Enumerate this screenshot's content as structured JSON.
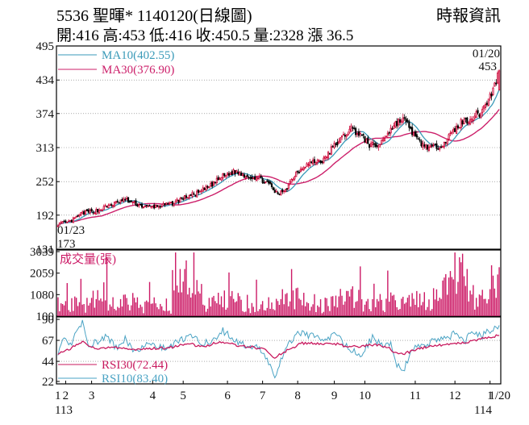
{
  "header": {
    "title_line": "5536 聖暉* 1140120(日線圖)",
    "quote_line": "開:416 高:453 低:416 收:450.5 量:2328 漲 36.5",
    "source": "時報資訊"
  },
  "colors": {
    "up": "#cc0033",
    "down": "#000000",
    "ma10": "#3a9ab8",
    "ma30": "#cc1f6a",
    "volume": "#cc1a66",
    "rsi10": "#4aa3c4",
    "rsi30": "#c8195e",
    "grid": "#777777"
  },
  "chart_data": [
    {
      "type": "candlestick",
      "yticks": [
        131,
        192,
        252,
        313,
        374,
        434,
        495
      ],
      "ylim": [
        131,
        495
      ],
      "legend": [
        {
          "label": "MA10(402.55)",
          "color": "#3a9ab8"
        },
        {
          "label": "MA30(376.90)",
          "color": "#cc1f6a"
        }
      ],
      "annotations": {
        "first_date": "01/23",
        "low_value": "173",
        "last_date": "01/20",
        "last_value": "453"
      },
      "period_start": "2024-01-23",
      "period_end": "2025-01-20",
      "close_keypoints": [
        [
          0,
          176
        ],
        [
          8,
          180
        ],
        [
          16,
          196
        ],
        [
          26,
          200
        ],
        [
          34,
          210
        ],
        [
          44,
          220
        ],
        [
          50,
          213
        ],
        [
          58,
          206
        ],
        [
          66,
          208
        ],
        [
          74,
          212
        ],
        [
          84,
          225
        ],
        [
          92,
          232
        ],
        [
          100,
          245
        ],
        [
          108,
          262
        ],
        [
          116,
          270
        ],
        [
          124,
          262
        ],
        [
          132,
          258
        ],
        [
          138,
          248
        ],
        [
          144,
          228
        ],
        [
          150,
          242
        ],
        [
          156,
          268
        ],
        [
          162,
          282
        ],
        [
          168,
          288
        ],
        [
          174,
          290
        ],
        [
          180,
          314
        ],
        [
          186,
          330
        ],
        [
          192,
          348
        ],
        [
          198,
          336
        ],
        [
          204,
          318
        ],
        [
          210,
          316
        ],
        [
          216,
          340
        ],
        [
          222,
          358
        ],
        [
          226,
          364
        ],
        [
          230,
          352
        ],
        [
          234,
          330
        ],
        [
          240,
          316
        ],
        [
          246,
          312
        ],
        [
          252,
          320
        ],
        [
          258,
          338
        ],
        [
          264,
          358
        ],
        [
          268,
          362
        ],
        [
          272,
          368
        ],
        [
          276,
          374
        ],
        [
          280,
          390
        ],
        [
          284,
          410
        ],
        [
          287,
          432
        ],
        [
          289,
          452
        ]
      ],
      "ma10_last": 402.55,
      "ma30_last": 376.9
    },
    {
      "type": "bar",
      "series_label": "成交量(張)",
      "yticks": [
        100,
        1080,
        2059,
        3039
      ],
      "ylim": [
        100,
        3039
      ],
      "volume_keypoints": [
        [
          0,
          800
        ],
        [
          10,
          700
        ],
        [
          20,
          600
        ],
        [
          30,
          1200
        ],
        [
          38,
          500
        ],
        [
          46,
          900
        ],
        [
          56,
          500
        ],
        [
          66,
          700
        ],
        [
          74,
          600
        ],
        [
          80,
          1700
        ],
        [
          84,
          1900
        ],
        [
          88,
          1500
        ],
        [
          98,
          600
        ],
        [
          108,
          900
        ],
        [
          116,
          800
        ],
        [
          124,
          700
        ],
        [
          132,
          600
        ],
        [
          142,
          700
        ],
        [
          150,
          1100
        ],
        [
          158,
          900
        ],
        [
          166,
          800
        ],
        [
          174,
          600
        ],
        [
          184,
          1000
        ],
        [
          192,
          1100
        ],
        [
          200,
          800
        ],
        [
          208,
          700
        ],
        [
          218,
          800
        ],
        [
          228,
          700
        ],
        [
          236,
          900
        ],
        [
          244,
          700
        ],
        [
          252,
          1500
        ],
        [
          258,
          2100
        ],
        [
          262,
          2400
        ],
        [
          266,
          1900
        ],
        [
          270,
          1200
        ],
        [
          276,
          1000
        ],
        [
          282,
          1300
        ],
        [
          289,
          2328
        ]
      ]
    },
    {
      "type": "line",
      "yticks": [
        22,
        44,
        67,
        90
      ],
      "ylim": [
        22,
        90
      ],
      "series": [
        {
          "name": "RSI30(72.44)",
          "last": 72.44
        },
        {
          "name": "RSI10(83.40)",
          "last": 83.4
        }
      ],
      "rsi10_keypoints": [
        [
          0,
          52
        ],
        [
          4,
          68
        ],
        [
          8,
          62
        ],
        [
          12,
          75
        ],
        [
          16,
          88
        ],
        [
          20,
          62
        ],
        [
          26,
          66
        ],
        [
          32,
          72
        ],
        [
          38,
          58
        ],
        [
          44,
          68
        ],
        [
          50,
          55
        ],
        [
          56,
          62
        ],
        [
          64,
          62
        ],
        [
          72,
          58
        ],
        [
          80,
          67
        ],
        [
          86,
          72
        ],
        [
          92,
          66
        ],
        [
          100,
          64
        ],
        [
          108,
          78
        ],
        [
          116,
          66
        ],
        [
          124,
          60
        ],
        [
          132,
          58
        ],
        [
          138,
          44
        ],
        [
          142,
          25
        ],
        [
          146,
          44
        ],
        [
          152,
          66
        ],
        [
          158,
          76
        ],
        [
          164,
          72
        ],
        [
          170,
          70
        ],
        [
          176,
          67
        ],
        [
          182,
          74
        ],
        [
          190,
          58
        ],
        [
          198,
          50
        ],
        [
          206,
          70
        ],
        [
          212,
          62
        ],
        [
          218,
          64
        ],
        [
          222,
          40
        ],
        [
          226,
          33
        ],
        [
          232,
          58
        ],
        [
          240,
          62
        ],
        [
          246,
          66
        ],
        [
          254,
          70
        ],
        [
          260,
          74
        ],
        [
          266,
          65
        ],
        [
          272,
          78
        ],
        [
          278,
          72
        ],
        [
          284,
          79
        ],
        [
          289,
          83.4
        ]
      ],
      "rsi30_keypoints": [
        [
          0,
          52
        ],
        [
          8,
          58
        ],
        [
          16,
          65
        ],
        [
          26,
          58
        ],
        [
          36,
          59
        ],
        [
          46,
          57
        ],
        [
          56,
          58
        ],
        [
          66,
          58
        ],
        [
          76,
          60
        ],
        [
          86,
          63
        ],
        [
          96,
          60
        ],
        [
          106,
          66
        ],
        [
          116,
          62
        ],
        [
          126,
          60
        ],
        [
          136,
          57
        ],
        [
          142,
          48
        ],
        [
          150,
          56
        ],
        [
          160,
          64
        ],
        [
          170,
          63
        ],
        [
          180,
          64
        ],
        [
          190,
          60
        ],
        [
          200,
          61
        ],
        [
          210,
          62
        ],
        [
          216,
          59
        ],
        [
          222,
          52
        ],
        [
          228,
          53
        ],
        [
          236,
          58
        ],
        [
          246,
          61
        ],
        [
          256,
          63
        ],
        [
          266,
          64
        ],
        [
          276,
          68
        ],
        [
          289,
          72.44
        ]
      ]
    }
  ],
  "xaxis": {
    "month_labels": [
      "1",
      "2",
      "3",
      "4",
      "5",
      "6",
      "7",
      "8",
      "9",
      "10",
      "11",
      "12",
      "1",
      "1/20"
    ],
    "month_days": [
      0,
      5,
      22,
      62,
      82,
      111,
      134,
      157,
      181,
      201,
      234,
      260,
      283,
      289
    ],
    "year_left": "113",
    "year_right": "114"
  }
}
